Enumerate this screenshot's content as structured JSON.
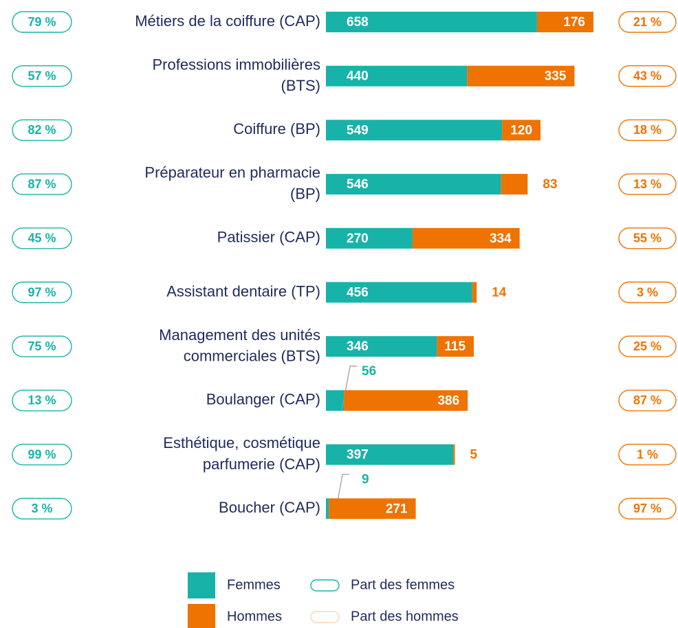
{
  "chart_data": {
    "type": "bar",
    "orientation": "horizontal",
    "stacked": true,
    "categories": [
      "Métiers de la coiffure (CAP)",
      "Professions immobilières\n(BTS)",
      "Coiffure (BP)",
      "Préparateur en pharmacie\n(BP)",
      "Patissier (CAP)",
      "Assistant dentaire (TP)",
      "Management des unités\ncommerciales (BTS)",
      "Boulanger (CAP)",
      "Esthétique, cosmétique\nparfumerie (CAP)",
      "Boucher (CAP)"
    ],
    "series": [
      {
        "name": "Femmes",
        "color": "#17b3a8",
        "values": [
          658,
          440,
          549,
          546,
          270,
          456,
          346,
          56,
          397,
          9
        ]
      },
      {
        "name": "Hommes",
        "color": "#ee7300",
        "values": [
          176,
          335,
          120,
          83,
          334,
          14,
          115,
          386,
          5,
          271
        ]
      }
    ],
    "shares": [
      {
        "name": "Part des femmes",
        "color": "#17b3a8",
        "values": [
          79,
          57,
          82,
          87,
          45,
          97,
          75,
          13,
          99,
          3
        ],
        "value_labels": [
          "79 %",
          "57 %",
          "82 %",
          "87 %",
          "45 %",
          "97 %",
          "75 %",
          "13 %",
          "99 %",
          "3 %"
        ]
      },
      {
        "name": "Part des hommes",
        "color": "#ee7300",
        "values": [
          21,
          43,
          18,
          13,
          55,
          3,
          25,
          87,
          1,
          97
        ],
        "value_labels": [
          "21 %",
          "43 %",
          "18 %",
          "13 %",
          "55 %",
          "3 %",
          "25 %",
          "87 %",
          "1 %",
          "97 %"
        ]
      }
    ]
  }
}
